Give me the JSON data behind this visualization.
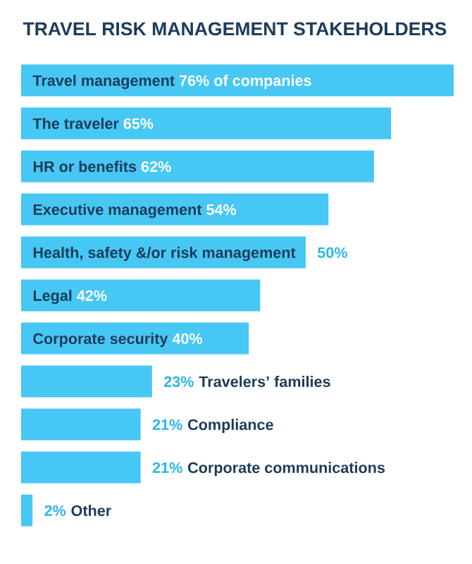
{
  "chart_data": {
    "type": "bar",
    "orientation": "horizontal",
    "title": "TRAVEL RISK MANAGEMENT STAKEHOLDERS",
    "categories": [
      "Travel management",
      "The traveler",
      "HR or benefits",
      "Executive management",
      "Health, safety &/or risk management",
      "Legal",
      "Corporate security",
      "Travelers’ families",
      "Compliance",
      "Corporate communications",
      "Other"
    ],
    "values": [
      76,
      65,
      62,
      54,
      50,
      42,
      40,
      23,
      21,
      21,
      2
    ],
    "value_labels": [
      "76% of companies",
      "65%",
      "62%",
      "54%",
      "50%",
      "42%",
      "40%",
      "23%",
      "21%",
      "21%",
      "2%"
    ],
    "color": "#47c7f4"
  }
}
